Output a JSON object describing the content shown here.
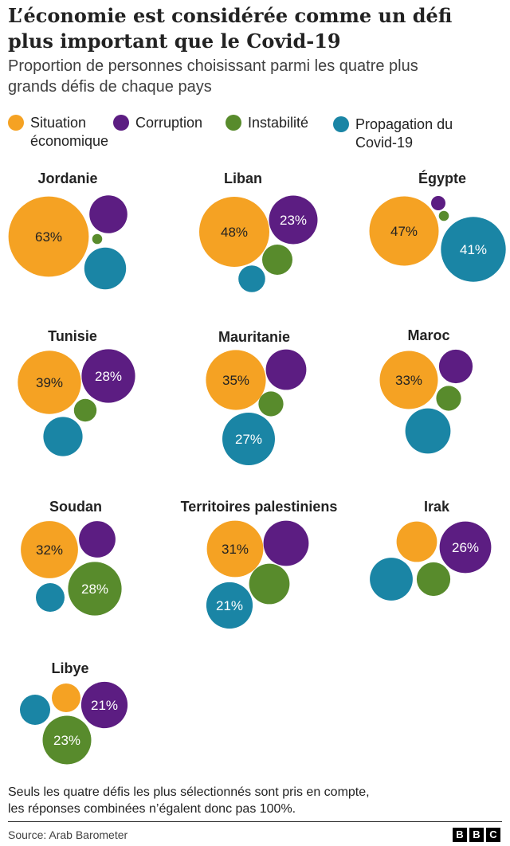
{
  "title_line1": "L’économie est considérée comme un défi",
  "title_line2": "plus important que le Covid-19",
  "subtitle_line1": "Proportion de personnes choisissant parmi les quatre plus",
  "subtitle_line2": "grands défis de chaque pays",
  "colors": {
    "economy": "#f5a223",
    "corruption": "#5c1d82",
    "instability": "#588b2c",
    "covid": "#1a85a5"
  },
  "legend": [
    {
      "key": "economy",
      "label_line1": "Situation",
      "label_line2": "économique"
    },
    {
      "key": "corruption",
      "label_line1": "Corruption",
      "label_line2": ""
    },
    {
      "key": "instability",
      "label_line1": "Instabilité",
      "label_line2": ""
    },
    {
      "key": "covid",
      "label_line1": "Propagation du",
      "label_line2": "Covid-19"
    }
  ],
  "chart_data": {
    "type": "bubble",
    "unit": "%",
    "series_keys": [
      "economy",
      "corruption",
      "instability",
      "covid"
    ],
    "countries": [
      {
        "name": "Jordanie",
        "values": {
          "economy": 63,
          "corruption": 14,
          "instability": 1,
          "covid": 17
        },
        "labels": {
          "economy": "63%"
        }
      },
      {
        "name": "Liban",
        "values": {
          "economy": 48,
          "corruption": 23,
          "instability": 9,
          "covid": 7
        },
        "labels": {
          "economy": "48%",
          "corruption": "23%"
        }
      },
      {
        "name": "Égypte",
        "values": {
          "economy": 47,
          "corruption": 2,
          "instability": 1,
          "covid": 41
        },
        "labels": {
          "economy": "47%",
          "covid": "41%"
        }
      },
      {
        "name": "Tunisie",
        "values": {
          "economy": 39,
          "corruption": 28,
          "instability": 5,
          "covid": 15
        },
        "labels": {
          "economy": "39%",
          "corruption": "28%"
        }
      },
      {
        "name": "Mauritanie",
        "values": {
          "economy": 35,
          "corruption": 16,
          "instability": 6,
          "covid": 27
        },
        "labels": {
          "economy": "35%",
          "covid": "27%"
        }
      },
      {
        "name": "Maroc",
        "values": {
          "economy": 33,
          "corruption": 11,
          "instability": 6,
          "covid": 20
        },
        "labels": {
          "economy": "33%"
        }
      },
      {
        "name": "Soudan",
        "values": {
          "economy": 32,
          "corruption": 13,
          "instability": 28,
          "covid": 8
        },
        "labels": {
          "economy": "32%",
          "instability": "28%"
        }
      },
      {
        "name": "Territoires palestiniens",
        "values": {
          "economy": 31,
          "corruption": 20,
          "instability": 16,
          "covid": 21
        },
        "labels": {
          "economy": "31%",
          "covid": "21%"
        }
      },
      {
        "name": "Irak",
        "values": {
          "economy": 16,
          "corruption": 26,
          "instability": 11,
          "covid": 18
        },
        "labels": {
          "corruption": "26%"
        }
      },
      {
        "name": "Libye",
        "values": {
          "economy": 8,
          "corruption": 21,
          "instability": 23,
          "covid": 9
        },
        "labels": {
          "corruption": "21%",
          "instability": "23%"
        }
      }
    ]
  },
  "footnote_line1": "Seuls les quatre défis les plus sélectionnés sont pris en compte,",
  "footnote_line2": "les réponses combinées n’égalent donc pas 100%.",
  "source": "Source: Arab Barometer",
  "logo": [
    "B",
    "B",
    "C"
  ]
}
